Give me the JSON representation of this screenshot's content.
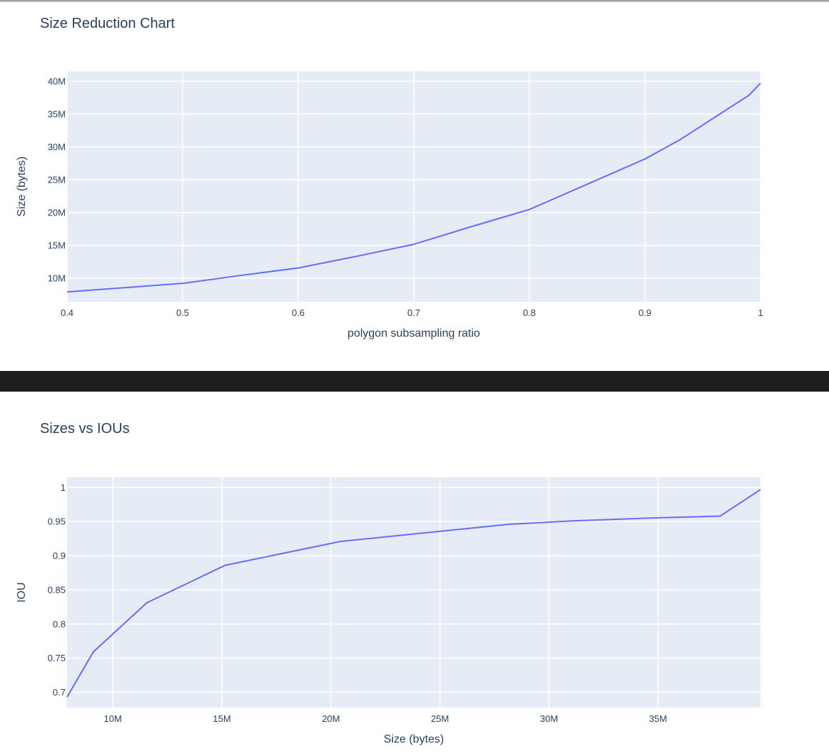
{
  "chart_data": [
    {
      "type": "line",
      "title": "Size Reduction Chart",
      "xlabel": "polygon subsampling ratio",
      "ylabel": "Size (bytes)",
      "xlim": [
        0.4,
        1.0
      ],
      "ylim": [
        6400000,
        41500000
      ],
      "grid": true,
      "x_ticks": [
        0.4,
        0.5,
        0.6,
        0.7,
        0.8,
        0.9,
        1.0
      ],
      "x_tick_labels": [
        "0.4",
        "0.5",
        "0.6",
        "0.7",
        "0.8",
        "0.9",
        "1"
      ],
      "y_ticks": [
        10000000,
        15000000,
        20000000,
        25000000,
        30000000,
        35000000,
        40000000
      ],
      "y_tick_labels": [
        "10M",
        "15M",
        "20M",
        "25M",
        "30M",
        "35M",
        "40M"
      ],
      "series": [
        {
          "color": "#636efa",
          "x": [
            0.4,
            0.45,
            0.5,
            0.55,
            0.6,
            0.65,
            0.7,
            0.75,
            0.8,
            0.85,
            0.9,
            0.93,
            0.96,
            0.99,
            1.0
          ],
          "y": [
            7900000,
            8550000,
            9200000,
            10400000,
            11550000,
            13300000,
            15150000,
            17850000,
            20450000,
            24300000,
            28150000,
            31050000,
            34450000,
            37850000,
            39700000
          ]
        }
      ]
    },
    {
      "type": "line",
      "title": "Sizes vs IOUs",
      "xlabel": "Size (bytes)",
      "ylabel": "IOU",
      "xlim": [
        7900000,
        39700000
      ],
      "ylim": [
        0.6775,
        1.015
      ],
      "grid": true,
      "x_ticks": [
        10000000,
        15000000,
        20000000,
        25000000,
        30000000,
        35000000
      ],
      "x_tick_labels": [
        "10M",
        "15M",
        "20M",
        "25M",
        "30M",
        "35M"
      ],
      "y_ticks": [
        0.7,
        0.75,
        0.8,
        0.85,
        0.9,
        0.95,
        1.0
      ],
      "y_tick_labels": [
        "0.7",
        "0.75",
        "0.8",
        "0.85",
        "0.9",
        "0.95",
        "1"
      ],
      "series": [
        {
          "color": "#636efa",
          "x": [
            7900000,
            9100000,
            11550000,
            15150000,
            20450000,
            28150000,
            31050000,
            34450000,
            37850000,
            39700000
          ],
          "y": [
            0.693,
            0.759,
            0.831,
            0.886,
            0.921,
            0.946,
            0.951,
            0.955,
            0.958,
            0.997
          ]
        }
      ]
    }
  ]
}
